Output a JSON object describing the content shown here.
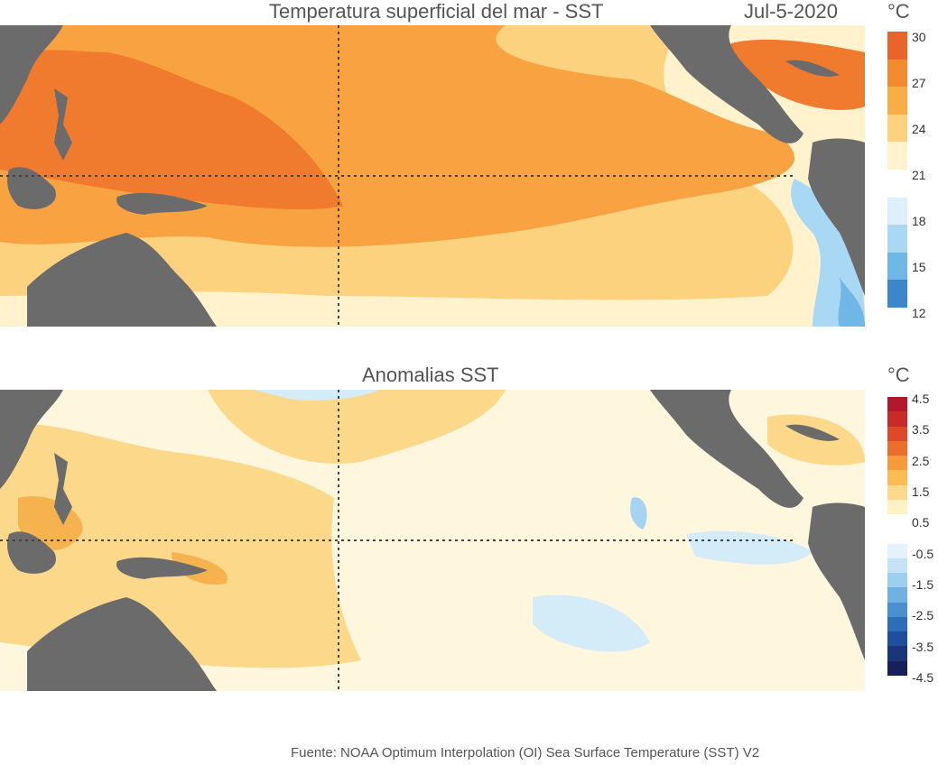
{
  "top_panel": {
    "title": "Temperatura superficial del mar - SST",
    "date": "Jul-5-2020",
    "unit": "°C",
    "colorbar": {
      "labels": [
        "30",
        "27",
        "24",
        "21",
        "18",
        "15",
        "12"
      ],
      "colors": [
        "#e8642a",
        "#f28a2e",
        "#f9ad45",
        "#fcd27e",
        "#fff2cc",
        "#ffffff",
        "#dceffa",
        "#a9d8f4",
        "#6fb7e6",
        "#3d86c9"
      ]
    },
    "colors": {
      "warm_pool": "#f07b2f",
      "warm": "#f8a241",
      "mid": "#fbcb6a",
      "cool": "#fff0c2",
      "cold": "#a9d8f4",
      "land": "#6b6b6b"
    }
  },
  "bottom_panel": {
    "title": "Anomalias SST",
    "unit": "°C",
    "colorbar": {
      "labels": [
        "4.5",
        "3.5",
        "2.5",
        "1.5",
        "0.5",
        "-0.5",
        "-1.5",
        "-2.5",
        "-3.5",
        "-4.5"
      ],
      "colors": [
        "#b2182b",
        "#c82a2a",
        "#dc4a2a",
        "#ec6e2c",
        "#f79a3a",
        "#fbbb55",
        "#fdd98c",
        "#fff2c4",
        "#ffffff",
        "#ffffff",
        "#e3f2fb",
        "#c4e4f6",
        "#9dd0ef",
        "#6fb1e1",
        "#4a8fcf",
        "#2d6db9",
        "#1f4f9c",
        "#1b357a",
        "#17205a"
      ]
    },
    "colors": {
      "pos": "#fbd88a",
      "pos_strong": "#f6b24f",
      "neutral": "#fff6de",
      "neg": "#d4ebf8",
      "land": "#6b6b6b"
    }
  },
  "footer": "Fuente: NOAA Optimum Interpolation (OI) Sea Surface Temperature (SST) V2"
}
